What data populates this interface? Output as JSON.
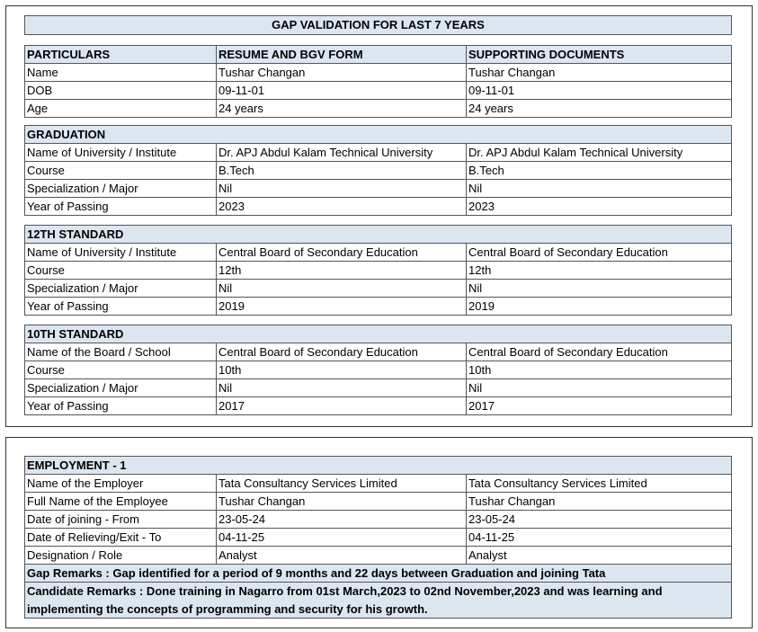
{
  "title": "GAP VALIDATION FOR LAST 7 YEARS",
  "sections": [
    {
      "header": [
        "PARTICULARS",
        "RESUME AND BGV FORM",
        "SUPPORTING DOCUMENTS"
      ],
      "rows": [
        [
          "Name",
          "Tushar Changan",
          "Tushar Changan"
        ],
        [
          "DOB",
          "09-11-01",
          "09-11-01"
        ],
        [
          "Age",
          "24 years",
          "24 years"
        ]
      ]
    },
    {
      "header": [
        "GRADUATION"
      ],
      "rows": [
        [
          "Name of University / Institute",
          "Dr. APJ Abdul Kalam Technical University",
          "Dr. APJ Abdul Kalam Technical University"
        ],
        [
          "Course",
          "B.Tech",
          "B.Tech"
        ],
        [
          "Specialization / Major",
          "Nil",
          "Nil"
        ],
        [
          "Year of Passing",
          "2023",
          "2023"
        ]
      ]
    },
    {
      "header": [
        "12TH STANDARD"
      ],
      "rows": [
        [
          "Name of University / Institute",
          "Central Board of Secondary Education",
          "Central Board of Secondary Education"
        ],
        [
          "Course",
          "12th",
          "12th"
        ],
        [
          "Specialization / Major",
          "Nil",
          "Nil"
        ],
        [
          "Year of Passing",
          "2019",
          "2019"
        ]
      ]
    },
    {
      "header": [
        "10TH STANDARD"
      ],
      "rows": [
        [
          "Name of the Board / School",
          "Central Board of Secondary Education",
          "Central Board of Secondary Education"
        ],
        [
          "Course",
          "10th",
          "10th"
        ],
        [
          "Specialization / Major",
          "Nil",
          "Nil"
        ],
        [
          "Year of Passing",
          "2017",
          "2017"
        ]
      ]
    }
  ],
  "employment": {
    "header": "EMPLOYMENT - 1",
    "rows": [
      [
        "Name of the Employer",
        "Tata Consultancy Services Limited",
        "Tata Consultancy Services Limited"
      ],
      [
        "Full Name of the Employee",
        "Tushar Changan",
        "Tushar Changan"
      ],
      [
        "Date of joining - From",
        "23-05-24",
        "23-05-24"
      ],
      [
        "Date of Relieving/Exit - To",
        "04-11-25",
        "04-11-25"
      ],
      [
        "Designation / Role",
        "Analyst",
        "Analyst"
      ]
    ],
    "remarks": [
      "Gap Remarks : Gap identified for a period of 9 months and 22 days between Graduation and joining Tata",
      "Candidate Remarks : Done training in Nagarro from 01st March,2023 to 02nd November,2023 and was learning and implementing the concepts of programming and security for his growth."
    ]
  }
}
